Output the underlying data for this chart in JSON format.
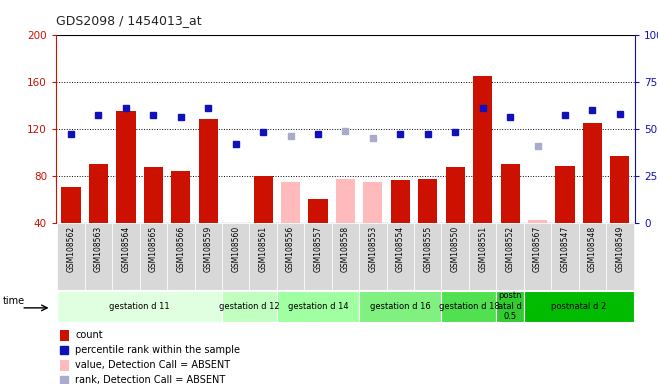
{
  "title": "GDS2098 / 1454013_at",
  "samples": [
    "GSM108562",
    "GSM108563",
    "GSM108564",
    "GSM108565",
    "GSM108566",
    "GSM108559",
    "GSM108560",
    "GSM108561",
    "GSM108556",
    "GSM108557",
    "GSM108558",
    "GSM108553",
    "GSM108554",
    "GSM108555",
    "GSM108550",
    "GSM108551",
    "GSM108552",
    "GSM108567",
    "GSM108547",
    "GSM108548",
    "GSM108549"
  ],
  "count_values": [
    70,
    90,
    135,
    87,
    84,
    128,
    40,
    80,
    null,
    60,
    null,
    null,
    76,
    77,
    87,
    165,
    90,
    null,
    88,
    125,
    97
  ],
  "count_absent": [
    null,
    null,
    null,
    null,
    null,
    null,
    null,
    null,
    75,
    null,
    77,
    75,
    null,
    null,
    null,
    null,
    null,
    42,
    null,
    null,
    null
  ],
  "rank_values": [
    47,
    57,
    61,
    57,
    56,
    61,
    42,
    48,
    null,
    47,
    null,
    null,
    47,
    47,
    48,
    61,
    56,
    null,
    57,
    60,
    58
  ],
  "rank_absent": [
    null,
    null,
    null,
    null,
    null,
    null,
    null,
    null,
    46,
    null,
    49,
    45,
    null,
    null,
    null,
    null,
    null,
    41,
    null,
    null,
    null
  ],
  "groups": [
    {
      "label": "gestation d 11",
      "start": 0,
      "end": 6
    },
    {
      "label": "gestation d 12",
      "start": 6,
      "end": 8
    },
    {
      "label": "gestation d 14",
      "start": 8,
      "end": 11
    },
    {
      "label": "gestation d 16",
      "start": 11,
      "end": 14
    },
    {
      "label": "gestation d 18",
      "start": 14,
      "end": 16
    },
    {
      "label": "postn\natal d\n0.5",
      "start": 16,
      "end": 17
    },
    {
      "label": "postnatal d 2",
      "start": 17,
      "end": 21
    }
  ],
  "group_colors": [
    "#e0ffe0",
    "#c0ffc0",
    "#a0ffa0",
    "#80f080",
    "#50e050",
    "#30cc30",
    "#00bb00"
  ],
  "ylim_left": [
    40,
    200
  ],
  "ylim_right": [
    0,
    100
  ],
  "bar_color_present": "#cc1100",
  "bar_color_absent": "#ffbbbb",
  "rank_color_present": "#1111bb",
  "rank_color_absent": "#aaaacc",
  "plot_bg": "#ffffff",
  "tick_area_bg": "#d8d8d8"
}
